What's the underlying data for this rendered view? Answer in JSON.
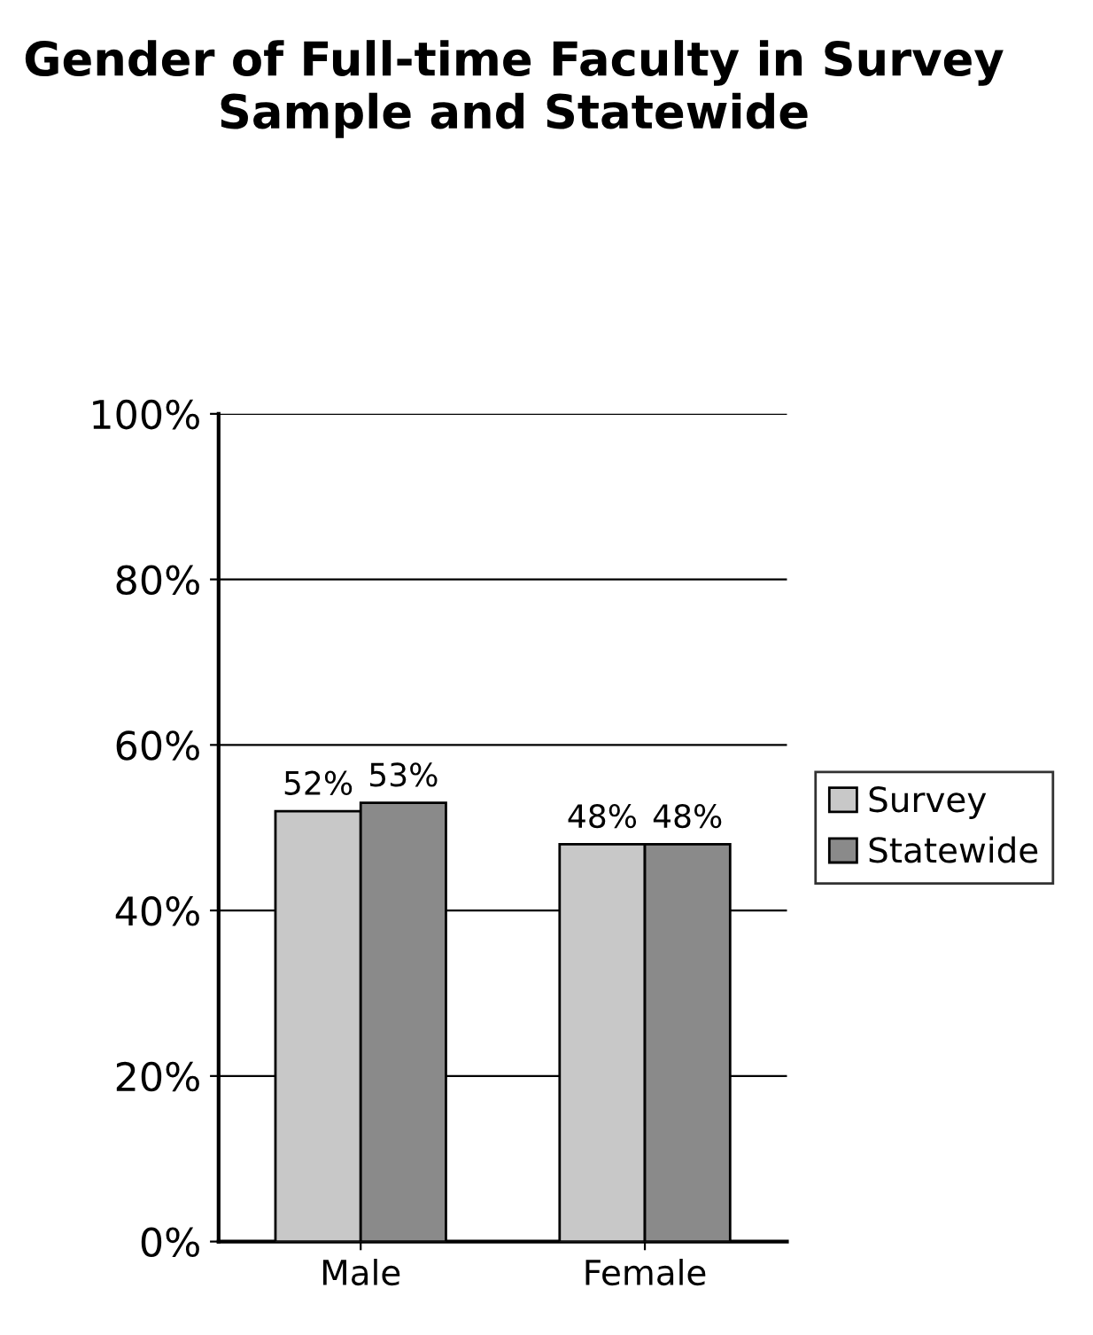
{
  "chart_data": {
    "type": "bar",
    "title": "Gender of Full-time Faculty in Survey Sample and Statewide",
    "categories": [
      "Male",
      "Female"
    ],
    "series": [
      {
        "name": "Survey",
        "color": "#c8c8c8",
        "values": [
          52,
          48
        ],
        "value_labels": [
          "52%",
          "48%"
        ]
      },
      {
        "name": "Statewide",
        "color": "#8a8a8a",
        "values": [
          53,
          48
        ],
        "value_labels": [
          "53%",
          "48%"
        ]
      }
    ],
    "ylim": [
      0,
      100
    ],
    "yticks": [
      {
        "value": 0,
        "label": "0%"
      },
      {
        "value": 20,
        "label": "20%"
      },
      {
        "value": 40,
        "label": "40%"
      },
      {
        "value": 60,
        "label": "60%"
      },
      {
        "value": 80,
        "label": "80%"
      },
      {
        "value": 100,
        "label": "100%"
      }
    ],
    "grid": "y",
    "legend": "right"
  }
}
